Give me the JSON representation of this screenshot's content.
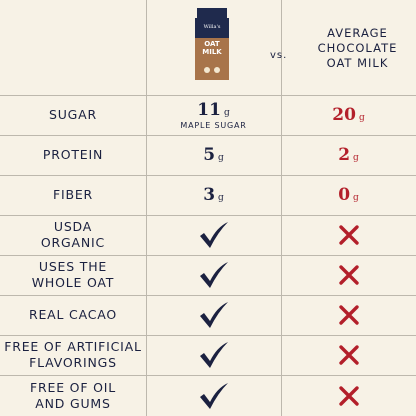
{
  "header": {
    "product_brand": "Willa's",
    "product_name_line1": "OAT",
    "product_name_line2": "MILK",
    "vs_label": "vs.",
    "comparison_label_line1": "AVERAGE",
    "comparison_label_line2": "CHOCOLATE",
    "comparison_label_line3": "OAT MILK"
  },
  "colors": {
    "navy": "#1b2140",
    "red": "#b31f2a",
    "background": "#f7f2e6",
    "carton_top": "#1f2a4d",
    "carton_body": "#a8744a"
  },
  "rows": [
    {
      "label_line1": "SUGAR",
      "label_line2": "",
      "a_value": "11",
      "a_unit": "g",
      "a_note": "MAPLE SUGAR",
      "b_value": "20",
      "b_unit": "g"
    },
    {
      "label_line1": "PROTEIN",
      "label_line2": "",
      "a_value": "5",
      "a_unit": "g",
      "a_note": "",
      "b_value": "2",
      "b_unit": "g"
    },
    {
      "label_line1": "FIBER",
      "label_line2": "",
      "a_value": "3",
      "a_unit": "g",
      "a_note": "",
      "b_value": "0",
      "b_unit": "g"
    },
    {
      "label_line1": "USDA",
      "label_line2": "ORGANIC",
      "a_icon": "check-icon",
      "b_icon": "x-icon"
    },
    {
      "label_line1": "USES THE",
      "label_line2": "WHOLE OAT",
      "a_icon": "check-icon",
      "b_icon": "x-icon"
    },
    {
      "label_line1": "REAL CACAO",
      "label_line2": "",
      "a_icon": "check-icon",
      "b_icon": "x-icon"
    },
    {
      "label_line1": "FREE OF ARTIFICIAL",
      "label_line2": "FLAVORINGS",
      "a_icon": "check-icon",
      "b_icon": "x-icon"
    },
    {
      "label_line1": "FREE OF OIL",
      "label_line2": "AND GUMS",
      "a_icon": "check-icon",
      "b_icon": "x-icon"
    }
  ]
}
